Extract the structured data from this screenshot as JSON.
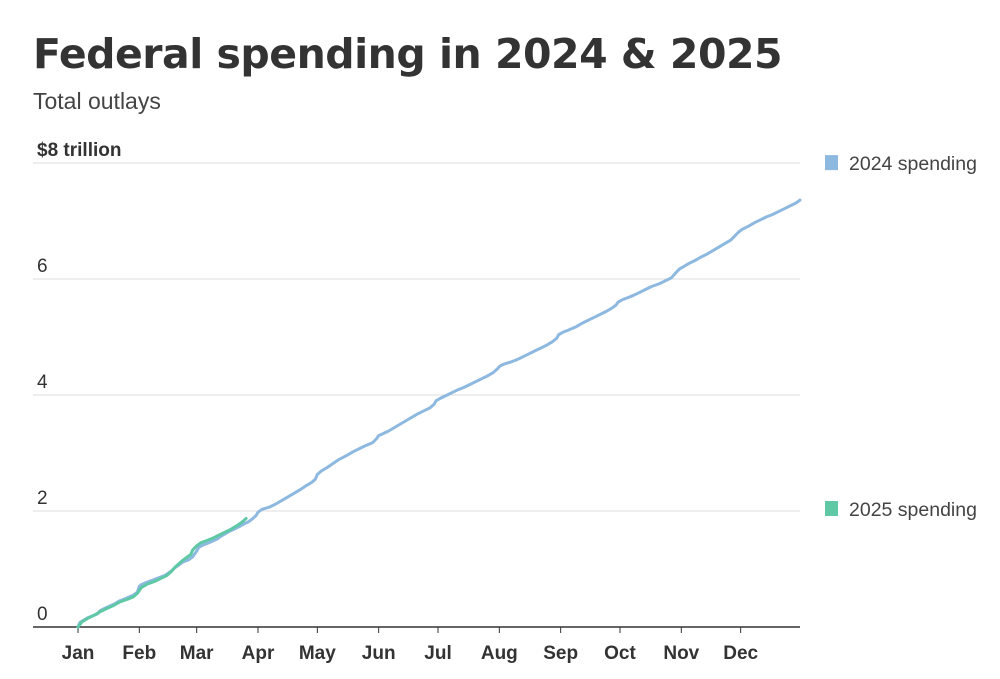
{
  "title": "Federal spending in 2024 & 2025",
  "subtitle": "Total outlays",
  "chart_data": {
    "type": "line",
    "title": "Federal spending in 2024 & 2025",
    "subtitle": "Total outlays",
    "y_ticks": [
      {
        "value": 0,
        "label": "0"
      },
      {
        "value": 2,
        "label": "2"
      },
      {
        "value": 4,
        "label": "4"
      },
      {
        "value": 6,
        "label": "6"
      },
      {
        "value": 8,
        "label": "$8 trillion"
      }
    ],
    "ylim": [
      0,
      8
    ],
    "x_ticks": [
      "Jan",
      "Feb",
      "Mar",
      "Apr",
      "May",
      "Jun",
      "Jul",
      "Aug",
      "Sep",
      "Oct",
      "Nov",
      "Dec"
    ],
    "x_unit": "day of year",
    "x_tick_days": [
      1,
      32,
      61,
      92,
      122,
      153,
      183,
      214,
      245,
      275,
      306,
      336
    ],
    "xlim": [
      1,
      366
    ],
    "grid": true,
    "legend_position": "right",
    "series": [
      {
        "name": "2024 spending",
        "color": "#8db8e0",
        "x": [
          1,
          2,
          4,
          6,
          9,
          11,
          12,
          15,
          19,
          22,
          25,
          27,
          29,
          31,
          32,
          33,
          35,
          38,
          42,
          45,
          48,
          50,
          52,
          54,
          57,
          59,
          61,
          62,
          64,
          67,
          71,
          74,
          77,
          80,
          83,
          85,
          87,
          89,
          91,
          92,
          94,
          98,
          101,
          104,
          107,
          110,
          113,
          116,
          119,
          121,
          122,
          124,
          127,
          130,
          133,
          137,
          140,
          143,
          146,
          150,
          152,
          153,
          155,
          158,
          161,
          164,
          167,
          170,
          173,
          176,
          179,
          181,
          182,
          184,
          187,
          190,
          193,
          196,
          199,
          202,
          205,
          208,
          211,
          213,
          214,
          216,
          220,
          223,
          226,
          229,
          232,
          235,
          238,
          241,
          243,
          244,
          246,
          249,
          253,
          256,
          259,
          262,
          265,
          268,
          271,
          273,
          274,
          276,
          279,
          282,
          285,
          288,
          291,
          295,
          298,
          301,
          303,
          305,
          307,
          310,
          313,
          316,
          319,
          322,
          325,
          328,
          331,
          333,
          335,
          337,
          340,
          343,
          346,
          349,
          352,
          355,
          358,
          361,
          364,
          366
        ],
        "values": [
          0.0,
          0.08,
          0.12,
          0.16,
          0.2,
          0.23,
          0.28,
          0.33,
          0.39,
          0.45,
          0.49,
          0.52,
          0.55,
          0.6,
          0.7,
          0.73,
          0.76,
          0.8,
          0.85,
          0.89,
          0.96,
          1.02,
          1.07,
          1.12,
          1.16,
          1.21,
          1.31,
          1.37,
          1.41,
          1.45,
          1.51,
          1.58,
          1.64,
          1.69,
          1.74,
          1.78,
          1.81,
          1.86,
          1.92,
          1.98,
          2.03,
          2.07,
          2.12,
          2.18,
          2.24,
          2.3,
          2.36,
          2.43,
          2.49,
          2.55,
          2.63,
          2.69,
          2.75,
          2.82,
          2.89,
          2.96,
          3.02,
          3.07,
          3.12,
          3.18,
          3.25,
          3.3,
          3.33,
          3.38,
          3.44,
          3.5,
          3.56,
          3.62,
          3.68,
          3.73,
          3.78,
          3.84,
          3.9,
          3.94,
          3.99,
          4.04,
          4.09,
          4.13,
          4.18,
          4.23,
          4.28,
          4.33,
          4.39,
          4.45,
          4.49,
          4.53,
          4.57,
          4.61,
          4.66,
          4.71,
          4.76,
          4.81,
          4.86,
          4.92,
          4.98,
          5.04,
          5.08,
          5.12,
          5.18,
          5.24,
          5.29,
          5.34,
          5.39,
          5.44,
          5.5,
          5.55,
          5.6,
          5.64,
          5.68,
          5.72,
          5.77,
          5.82,
          5.87,
          5.92,
          5.97,
          6.02,
          6.1,
          6.17,
          6.21,
          6.27,
          6.32,
          6.38,
          6.43,
          6.49,
          6.55,
          6.61,
          6.67,
          6.74,
          6.81,
          6.86,
          6.91,
          6.97,
          7.02,
          7.07,
          7.11,
          7.16,
          7.21,
          7.26,
          7.31,
          7.36
        ]
      },
      {
        "name": "2025 spending",
        "color": "#5fc8a5",
        "x": [
          1,
          3,
          6,
          9,
          12,
          15,
          19,
          22,
          26,
          29,
          31,
          33,
          36,
          40,
          43,
          46,
          48,
          50,
          52,
          54,
          56,
          58,
          59,
          61,
          63,
          66,
          69,
          72,
          75,
          78,
          80,
          82,
          84,
          86
        ],
        "values": [
          0.0,
          0.09,
          0.15,
          0.2,
          0.26,
          0.31,
          0.37,
          0.43,
          0.48,
          0.52,
          0.58,
          0.68,
          0.74,
          0.79,
          0.84,
          0.89,
          0.95,
          1.03,
          1.09,
          1.15,
          1.2,
          1.25,
          1.33,
          1.4,
          1.45,
          1.49,
          1.53,
          1.58,
          1.63,
          1.68,
          1.72,
          1.76,
          1.81,
          1.87
        ]
      }
    ]
  }
}
